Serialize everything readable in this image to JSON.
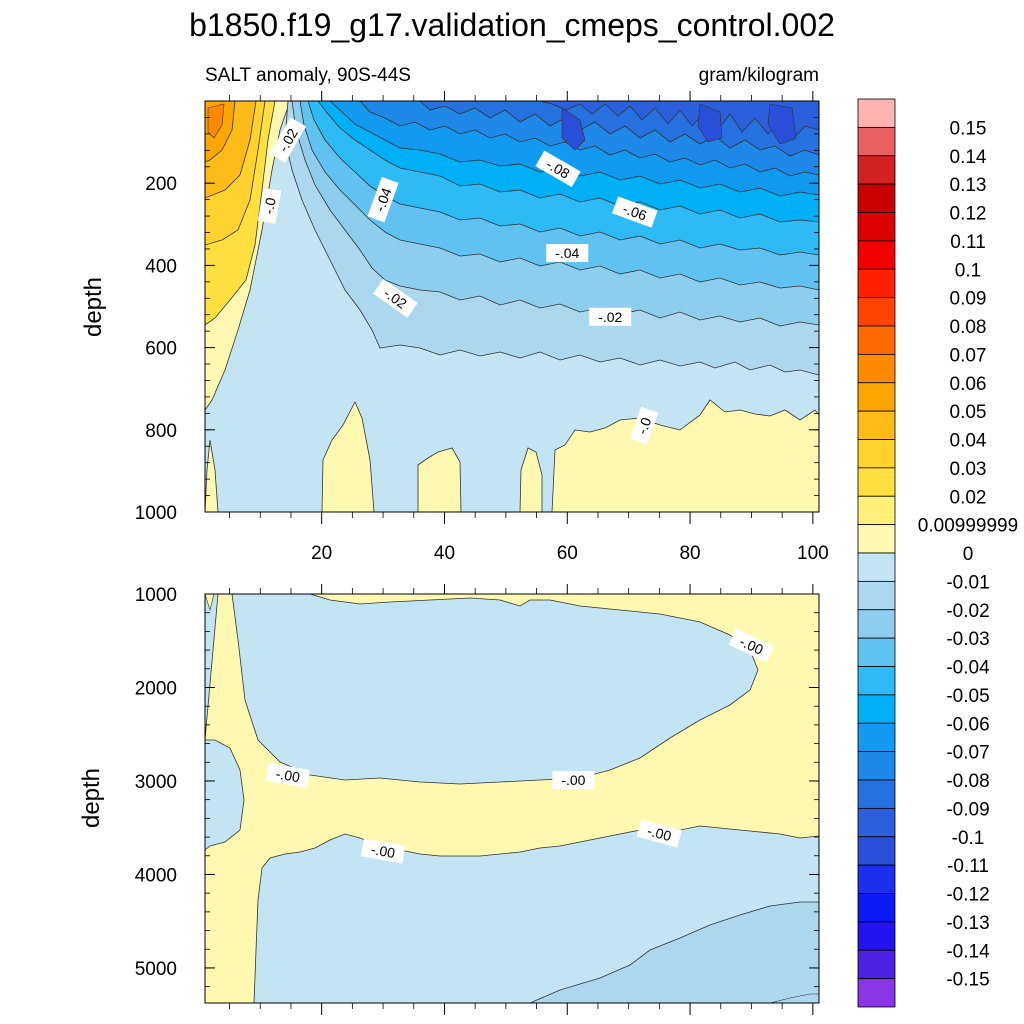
{
  "title": "b1850.f19_g17.validation_cmeps_control.002",
  "chart_data": {
    "type": "heatmap",
    "plot_type": "filled contour (depth vs time)",
    "left_label": "SALT anomaly, 90S-44S",
    "right_label": "gram/kilogram",
    "ylabel": "depth",
    "x_range": [
      1,
      101
    ],
    "x_ticks": [
      20,
      40,
      60,
      80,
      100
    ],
    "panels": [
      {
        "name": "upper",
        "ylim": [
          0,
          1000
        ],
        "y_reversed": true,
        "y_ticks": [
          200,
          400,
          600,
          800,
          1000
        ],
        "contour_labels": [
          "-.02",
          "-.0",
          "-.08",
          "-.04",
          "-.06",
          "-.04",
          "-.02",
          "-.02",
          "-.0"
        ]
      },
      {
        "name": "lower",
        "ylim": [
          1000,
          5375
        ],
        "y_reversed": true,
        "y_ticks": [
          1000,
          2000,
          3000,
          4000,
          5000
        ],
        "contour_labels": [
          "-.00",
          "-.00",
          "-.00",
          "-.00",
          "-.00"
        ]
      }
    ],
    "colorbar": {
      "labels": [
        "0.15",
        "0.14",
        "0.13",
        "0.12",
        "0.11",
        "0.1",
        "0.09",
        "0.08",
        "0.07",
        "0.06",
        "0.05",
        "0.04",
        "0.03",
        "0.02",
        "0.00999999",
        "0",
        "-0.01",
        "-0.02",
        "-0.03",
        "-0.04",
        "-0.05",
        "-0.06",
        "-0.07",
        "-0.08",
        "-0.09",
        "-0.1",
        "-0.11",
        "-0.12",
        "-0.13",
        "-0.14",
        "-0.15"
      ],
      "colors": [
        "#FFB3B3",
        "#E86060",
        "#D42222",
        "#C80000",
        "#DD0000",
        "#F20000",
        "#FF2000",
        "#FF4400",
        "#FF6A00",
        "#FF8A00",
        "#FFA500",
        "#FFBB18",
        "#FFD22E",
        "#FFE040",
        "#FFF07A",
        "#FFF8B0",
        "#C3E4F3",
        "#ABD8EF",
        "#8DCDEE",
        "#60C2F0",
        "#2DBAF5",
        "#00B0F6",
        "#1299F0",
        "#1E88E8",
        "#2770E0",
        "#2B5FDC",
        "#2A4FD8",
        "#1A30EC",
        "#0B1BF6",
        "#2412F0",
        "#4B22E4",
        "#8A35E6"
      ]
    }
  }
}
